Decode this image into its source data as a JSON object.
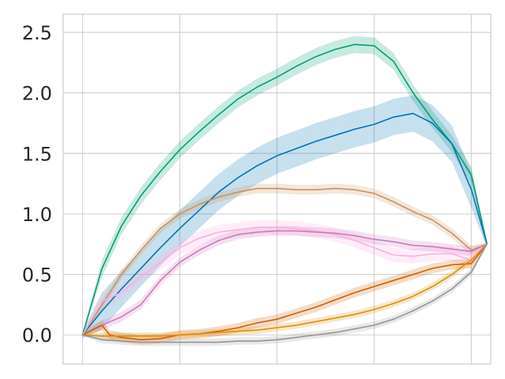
{
  "chart_data": {
    "type": "line",
    "title": "",
    "xlabel": "",
    "ylabel": "",
    "xlim": [
      -0.05,
      1.05
    ],
    "ylim": [
      -0.24,
      2.65
    ],
    "xticks": [
      0,
      0.25,
      0.5,
      0.75,
      1.0
    ],
    "yticks": [
      0.0,
      0.5,
      1.0,
      1.5,
      2.0,
      2.5
    ],
    "ytick_labels": [
      "0.0",
      "0.5",
      "1.0",
      "1.5",
      "2.0",
      "2.5"
    ],
    "grid": true,
    "legend": "none",
    "series": [
      {
        "color": "#029e73",
        "x": [
          0,
          0.05,
          0.1,
          0.15,
          0.2,
          0.25,
          0.3,
          0.35,
          0.4,
          0.45,
          0.5,
          0.55,
          0.6,
          0.65,
          0.7,
          0.75,
          0.8,
          0.85,
          0.9,
          0.95,
          1.0,
          1.04
        ],
        "y": [
          0,
          0.55,
          0.9,
          1.15,
          1.35,
          1.53,
          1.68,
          1.82,
          1.95,
          2.05,
          2.13,
          2.22,
          2.3,
          2.36,
          2.4,
          2.39,
          2.26,
          2.0,
          1.78,
          1.58,
          1.32,
          0.75
        ],
        "band": 0.07
      },
      {
        "color": "#0173b2",
        "x": [
          0,
          0.05,
          0.1,
          0.15,
          0.2,
          0.25,
          0.3,
          0.35,
          0.4,
          0.45,
          0.5,
          0.55,
          0.6,
          0.65,
          0.7,
          0.75,
          0.8,
          0.85,
          0.9,
          0.95,
          1.0,
          1.04
        ],
        "y": [
          0,
          0.2,
          0.38,
          0.55,
          0.72,
          0.88,
          1.03,
          1.18,
          1.3,
          1.4,
          1.48,
          1.54,
          1.6,
          1.65,
          1.7,
          1.74,
          1.8,
          1.83,
          1.75,
          1.58,
          1.2,
          0.75
        ],
        "band": 0.15
      },
      {
        "color": "#ca9161",
        "x": [
          0,
          0.05,
          0.1,
          0.15,
          0.2,
          0.25,
          0.3,
          0.35,
          0.4,
          0.45,
          0.5,
          0.55,
          0.6,
          0.65,
          0.7,
          0.75,
          0.8,
          0.85,
          0.9,
          0.95,
          1.0,
          1.04
        ],
        "y": [
          0,
          0.25,
          0.5,
          0.7,
          0.88,
          1.0,
          1.08,
          1.14,
          1.18,
          1.21,
          1.21,
          1.2,
          1.2,
          1.21,
          1.2,
          1.17,
          1.1,
          1.02,
          0.95,
          0.84,
          0.7,
          0.75
        ],
        "band": 0.04
      },
      {
        "color": "#fbafe4",
        "x": [
          0,
          0.05,
          0.1,
          0.15,
          0.2,
          0.25,
          0.3,
          0.35,
          0.4,
          0.45,
          0.5,
          0.55,
          0.6,
          0.65,
          0.7,
          0.75,
          0.8,
          0.85,
          0.9,
          0.95,
          1.0,
          1.04
        ],
        "y": [
          0,
          0.28,
          0.35,
          0.48,
          0.6,
          0.72,
          0.8,
          0.85,
          0.87,
          0.89,
          0.89,
          0.88,
          0.86,
          0.83,
          0.78,
          0.72,
          0.66,
          0.65,
          0.67,
          0.67,
          0.62,
          0.75
        ],
        "band": 0.06
      },
      {
        "color": "#cc78bc",
        "x": [
          0,
          0.05,
          0.1,
          0.15,
          0.2,
          0.25,
          0.3,
          0.35,
          0.4,
          0.45,
          0.5,
          0.55,
          0.6,
          0.65,
          0.7,
          0.75,
          0.8,
          0.85,
          0.9,
          0.95,
          1.0,
          1.04
        ],
        "y": [
          0,
          0.08,
          0.15,
          0.25,
          0.45,
          0.6,
          0.7,
          0.78,
          0.83,
          0.85,
          0.86,
          0.86,
          0.85,
          0.84,
          0.82,
          0.79,
          0.77,
          0.74,
          0.73,
          0.71,
          0.69,
          0.75
        ],
        "band": 0.04
      },
      {
        "color": "#d55e00",
        "x": [
          0,
          0.03,
          0.05,
          0.07,
          0.1,
          0.15,
          0.2,
          0.25,
          0.3,
          0.35,
          0.4,
          0.45,
          0.5,
          0.55,
          0.6,
          0.65,
          0.7,
          0.75,
          0.8,
          0.85,
          0.9,
          0.95,
          1.0,
          1.04
        ],
        "y": [
          0,
          0.05,
          0.08,
          0.0,
          -0.02,
          -0.04,
          -0.03,
          0.0,
          0.01,
          0.03,
          0.06,
          0.1,
          0.13,
          0.18,
          0.23,
          0.29,
          0.35,
          0.4,
          0.45,
          0.5,
          0.55,
          0.58,
          0.59,
          0.75
        ],
        "band": 0.04
      },
      {
        "color": "#de8f05",
        "x": [
          0,
          0.05,
          0.1,
          0.15,
          0.2,
          0.25,
          0.3,
          0.35,
          0.4,
          0.45,
          0.5,
          0.55,
          0.6,
          0.65,
          0.7,
          0.75,
          0.8,
          0.85,
          0.9,
          0.95,
          1.0,
          1.04
        ],
        "y": [
          0,
          -0.01,
          -0.01,
          -0.01,
          -0.01,
          0.0,
          0.01,
          0.02,
          0.03,
          0.04,
          0.06,
          0.08,
          0.11,
          0.14,
          0.17,
          0.21,
          0.26,
          0.32,
          0.4,
          0.5,
          0.62,
          0.75
        ],
        "band": 0.03
      },
      {
        "color": "#949494",
        "x": [
          0,
          0.05,
          0.1,
          0.15,
          0.2,
          0.25,
          0.3,
          0.35,
          0.4,
          0.45,
          0.5,
          0.55,
          0.6,
          0.65,
          0.7,
          0.75,
          0.8,
          0.85,
          0.9,
          0.95,
          1.0,
          1.04
        ],
        "y": [
          0,
          -0.04,
          -0.05,
          -0.06,
          -0.06,
          -0.06,
          -0.06,
          -0.06,
          -0.05,
          -0.05,
          -0.04,
          -0.02,
          0.0,
          0.02,
          0.05,
          0.08,
          0.13,
          0.2,
          0.28,
          0.38,
          0.52,
          0.75
        ],
        "band": 0.03
      }
    ]
  }
}
